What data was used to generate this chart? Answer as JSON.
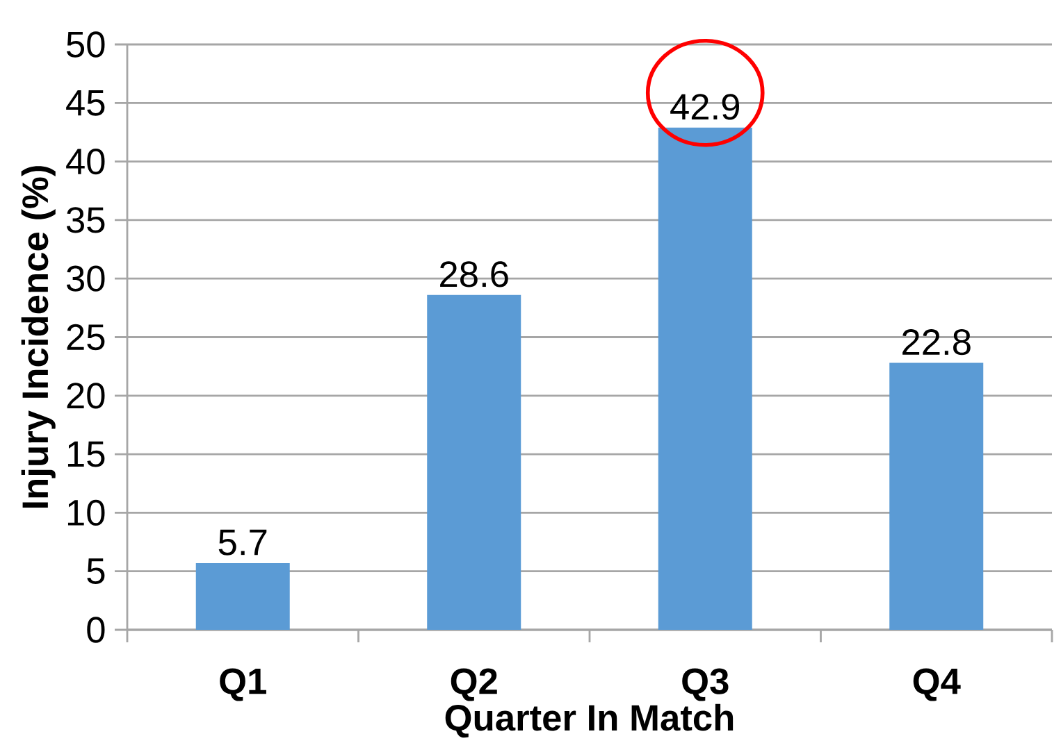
{
  "chart_data": {
    "type": "bar",
    "xlabel": "Quarter In Match",
    "ylabel": "Injury Incidence (%)",
    "categories": [
      "Q1",
      "Q2",
      "Q3",
      "Q4"
    ],
    "values": [
      5.7,
      28.6,
      42.9,
      22.8
    ],
    "color": "#5b9bd5",
    "ylim": [
      0,
      50
    ],
    "yticks": [
      0,
      5,
      10,
      15,
      20,
      25,
      30,
      35,
      40,
      45,
      50
    ],
    "grid": "y",
    "data_labels": true
  }
}
